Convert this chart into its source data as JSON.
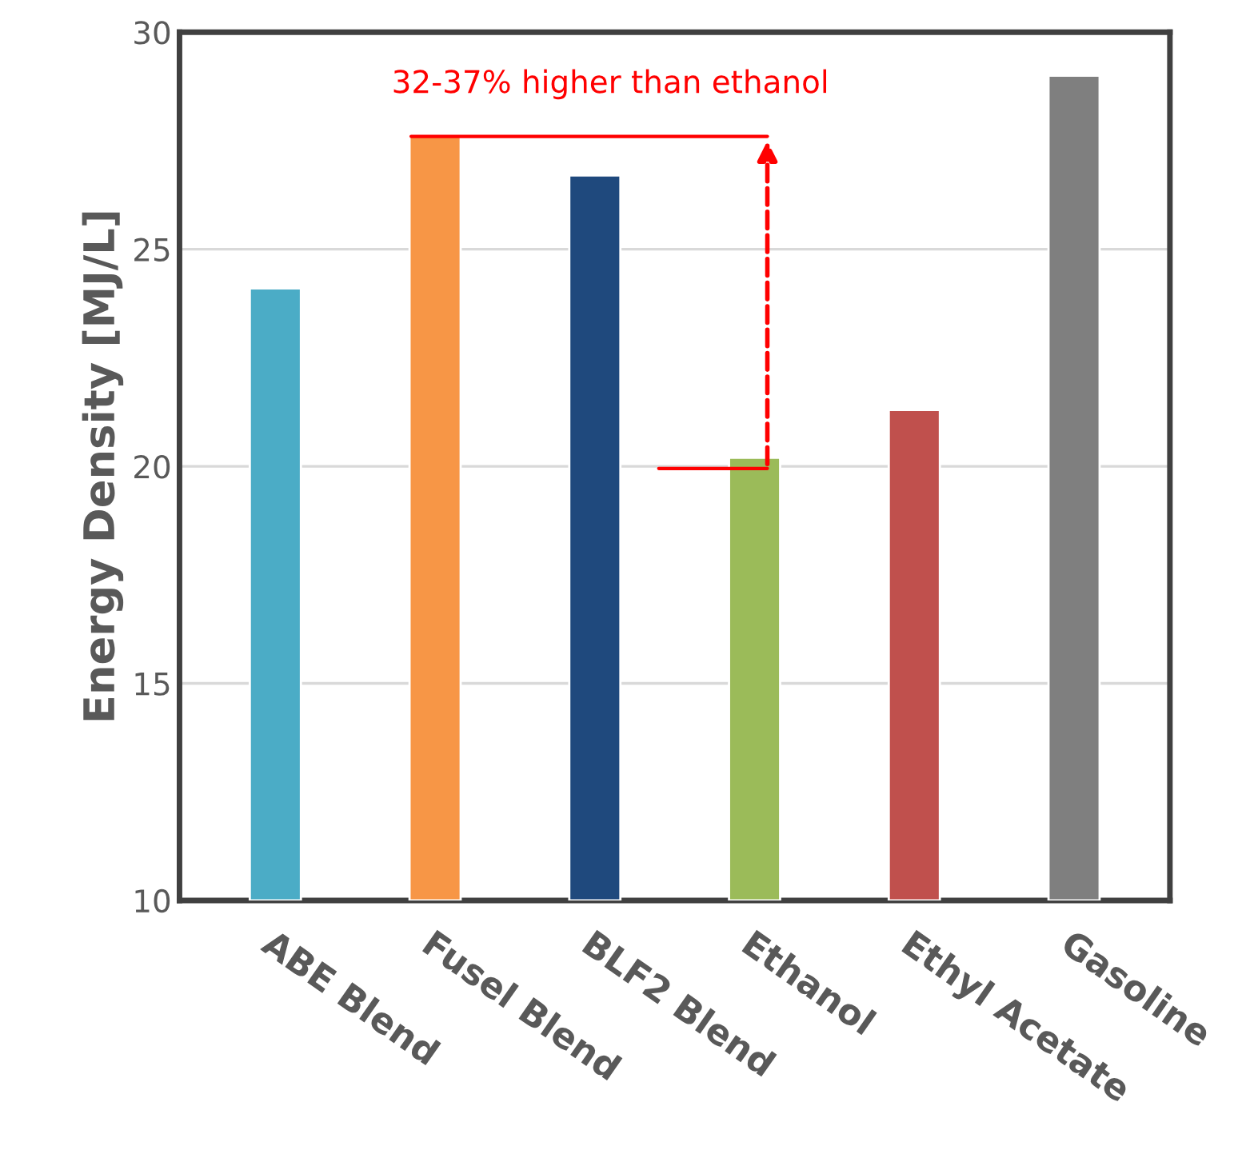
{
  "chart_data": {
    "type": "bar",
    "ylabel": "Energy Density [MJ/L]",
    "categories": [
      "ABE Blend",
      "Fusel Blend",
      "BLF2 Blend",
      "Ethanol",
      "Ethyl Acetate",
      "Gasoline"
    ],
    "values": [
      24.1,
      27.6,
      26.7,
      20.2,
      21.3,
      29.0
    ],
    "colors": [
      "#4bacc6",
      "#f79646",
      "#1f497d",
      "#9bbb59",
      "#c0504d",
      "#7f7f7f"
    ],
    "ylim": [
      10,
      30
    ],
    "yticks": [
      10,
      15,
      20,
      25,
      30
    ],
    "grid": "y",
    "annotations": [
      "32-37% higher than ethanol"
    ]
  }
}
